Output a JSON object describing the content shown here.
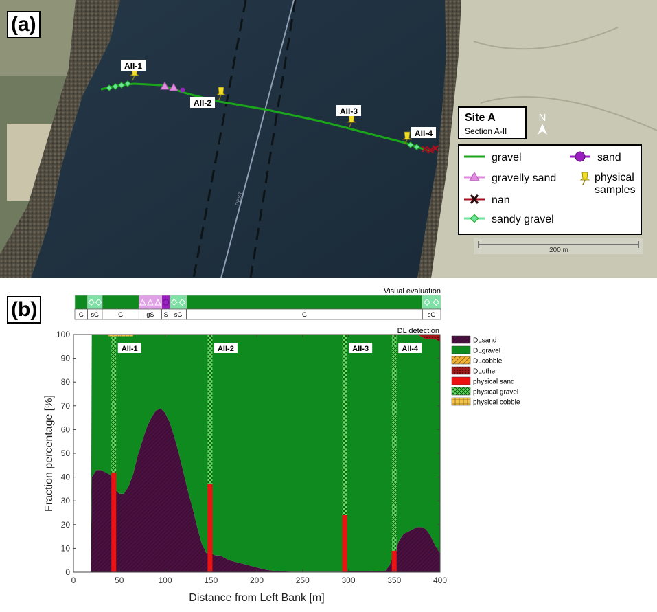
{
  "panel_a": {
    "label": "(a)",
    "site_title": "Site A",
    "site_subtitle": "Section A-II",
    "north": "N",
    "scale_text": "200 m",
    "road_label": "PEST",
    "sample_labels": [
      "AII-1",
      "AII-2",
      "AII-3",
      "AII-4"
    ],
    "legend": [
      {
        "key": "gravel",
        "label": "gravel"
      },
      {
        "key": "gravelly_sand",
        "label": "gravelly sand"
      },
      {
        "key": "nan",
        "label": "nan"
      },
      {
        "key": "sandy_gravel",
        "label": "sandy gravel"
      },
      {
        "key": "sand",
        "label": "sand"
      },
      {
        "key": "physical",
        "label_line1": "physical",
        "label_line2": "samples"
      }
    ],
    "colors": {
      "gravel": "#1aa51a",
      "gravelly_sand": "#e08be0",
      "sand": "#9b1fc0",
      "nan": "#a30f1f",
      "sandy_gravel": "#6be39a",
      "pin": "#f2de22"
    }
  },
  "panel_b": {
    "label": "(b)",
    "visual_title": "Visual evaluation",
    "dl_title": "DL detection",
    "visual_segments": [
      {
        "code": "G",
        "start": 0,
        "end": 14,
        "type": "gravel"
      },
      {
        "code": "sG",
        "start": 14,
        "end": 30,
        "type": "sandy_gravel"
      },
      {
        "code": "G",
        "start": 30,
        "end": 70,
        "type": "gravel"
      },
      {
        "code": "gS",
        "start": 70,
        "end": 95,
        "type": "gravelly_sand"
      },
      {
        "code": "S",
        "start": 95,
        "end": 104,
        "type": "sand"
      },
      {
        "code": "sG",
        "start": 104,
        "end": 122,
        "type": "sandy_gravel"
      },
      {
        "code": "G",
        "start": 122,
        "end": 380,
        "type": "gravel"
      },
      {
        "code": "sG",
        "start": 380,
        "end": 400,
        "type": "sandy_gravel"
      }
    ]
  },
  "chart_data": {
    "type": "area",
    "xlabel": "Distance from Left Bank [m]",
    "ylabel": "Fraction percentage [%]",
    "xlim": [
      0,
      400
    ],
    "ylim": [
      0,
      100
    ],
    "xticks": [
      0,
      50,
      100,
      150,
      200,
      250,
      300,
      350,
      400
    ],
    "yticks": [
      0,
      10,
      20,
      30,
      40,
      50,
      60,
      70,
      80,
      90,
      100
    ],
    "legend_position": "right",
    "x": [
      19,
      20,
      25,
      30,
      35,
      40,
      42,
      45,
      50,
      55,
      60,
      65,
      70,
      75,
      80,
      85,
      90,
      95,
      100,
      105,
      110,
      115,
      120,
      125,
      130,
      135,
      140,
      145,
      150,
      155,
      160,
      170,
      180,
      190,
      200,
      210,
      220,
      230,
      240,
      250,
      260,
      270,
      280,
      290,
      300,
      310,
      320,
      330,
      340,
      345,
      350,
      355,
      360,
      365,
      370,
      375,
      380,
      385,
      390,
      395,
      400
    ],
    "series": [
      {
        "name": "DLsand",
        "color": "#4a1040",
        "values": [
          0,
          40,
          43,
          43,
          42,
          41,
          40,
          35,
          33,
          33,
          36,
          41,
          49,
          55,
          61,
          65,
          68,
          69,
          67,
          63,
          57,
          50,
          42,
          34,
          27,
          19,
          12,
          8,
          8,
          7,
          7,
          5,
          4,
          3,
          2,
          1,
          0.5,
          0.3,
          0.2,
          0.2,
          0.2,
          0.2,
          0.2,
          0.2,
          0.3,
          0.3,
          0.3,
          0.4,
          0.5,
          3,
          8,
          13,
          16,
          17,
          18,
          19,
          19,
          18,
          15,
          11,
          8
        ]
      },
      {
        "name": "DLgravel",
        "color": "#0e8a1e",
        "values": [
          0,
          60,
          57,
          57,
          58,
          59,
          60,
          65,
          67,
          67,
          64,
          59,
          51,
          45,
          39,
          35,
          32,
          31,
          33,
          37,
          43,
          50,
          58,
          66,
          73,
          81,
          88,
          92,
          92,
          93,
          93,
          95,
          96,
          97,
          98,
          99,
          99.5,
          99.7,
          99.8,
          99.8,
          99.8,
          99.8,
          99.8,
          99.8,
          99.7,
          99.7,
          99.7,
          99.6,
          99.5,
          97,
          92,
          87,
          84,
          83,
          82,
          81,
          80,
          80,
          83,
          87,
          89
        ]
      },
      {
        "name": "DLcobble",
        "color": "#f2b233",
        "values": [
          0,
          0,
          0,
          0,
          0,
          0,
          0,
          0,
          0,
          0,
          0,
          0,
          0,
          0,
          0,
          0,
          0,
          0,
          0,
          0,
          0,
          0,
          0,
          0,
          0,
          0,
          0,
          0,
          0,
          0,
          0,
          0,
          0,
          0,
          0,
          0,
          0,
          0,
          0,
          0,
          0,
          0,
          0,
          0,
          0,
          0,
          0,
          0,
          0,
          0,
          0,
          0,
          0,
          0,
          0,
          0,
          0,
          0,
          0,
          0,
          0
        ]
      },
      {
        "name": "DLother",
        "color": "#a01818",
        "values": [
          0,
          0,
          0,
          0,
          0,
          0,
          0,
          0,
          0,
          0,
          0,
          0,
          0,
          0,
          0,
          0,
          0,
          0,
          0,
          0,
          0,
          0,
          0,
          0,
          0,
          0,
          0,
          0,
          0,
          0,
          0,
          0,
          0,
          0,
          0,
          0,
          0,
          0,
          0,
          0,
          0,
          0,
          0,
          0,
          0,
          0,
          0,
          0,
          0,
          0,
          0,
          0,
          0,
          0,
          0,
          0,
          1,
          2,
          2,
          2,
          3
        ]
      }
    ],
    "physical_samples": [
      {
        "label": "AII-1",
        "x": 44,
        "sand": 42,
        "gravel": 58,
        "cobble": 0
      },
      {
        "label": "AII-2",
        "x": 149,
        "sand": 37,
        "gravel": 63,
        "cobble": 0
      },
      {
        "label": "AII-3",
        "x": 296,
        "sand": 24,
        "gravel": 76,
        "cobble": 0
      },
      {
        "label": "AII-4",
        "x": 350,
        "sand": 9,
        "gravel": 91,
        "cobble": 0
      }
    ],
    "legend": [
      {
        "label": "DLsand",
        "style": "sand"
      },
      {
        "label": "DLgravel",
        "style": "gravel"
      },
      {
        "label": "DLcobble",
        "style": "cobble"
      },
      {
        "label": "DLother",
        "style": "other"
      },
      {
        "label": "physical sand",
        "style": "psand"
      },
      {
        "label": "physical gravel",
        "style": "pgravel"
      },
      {
        "label": "physical cobble",
        "style": "pcobble"
      }
    ]
  }
}
